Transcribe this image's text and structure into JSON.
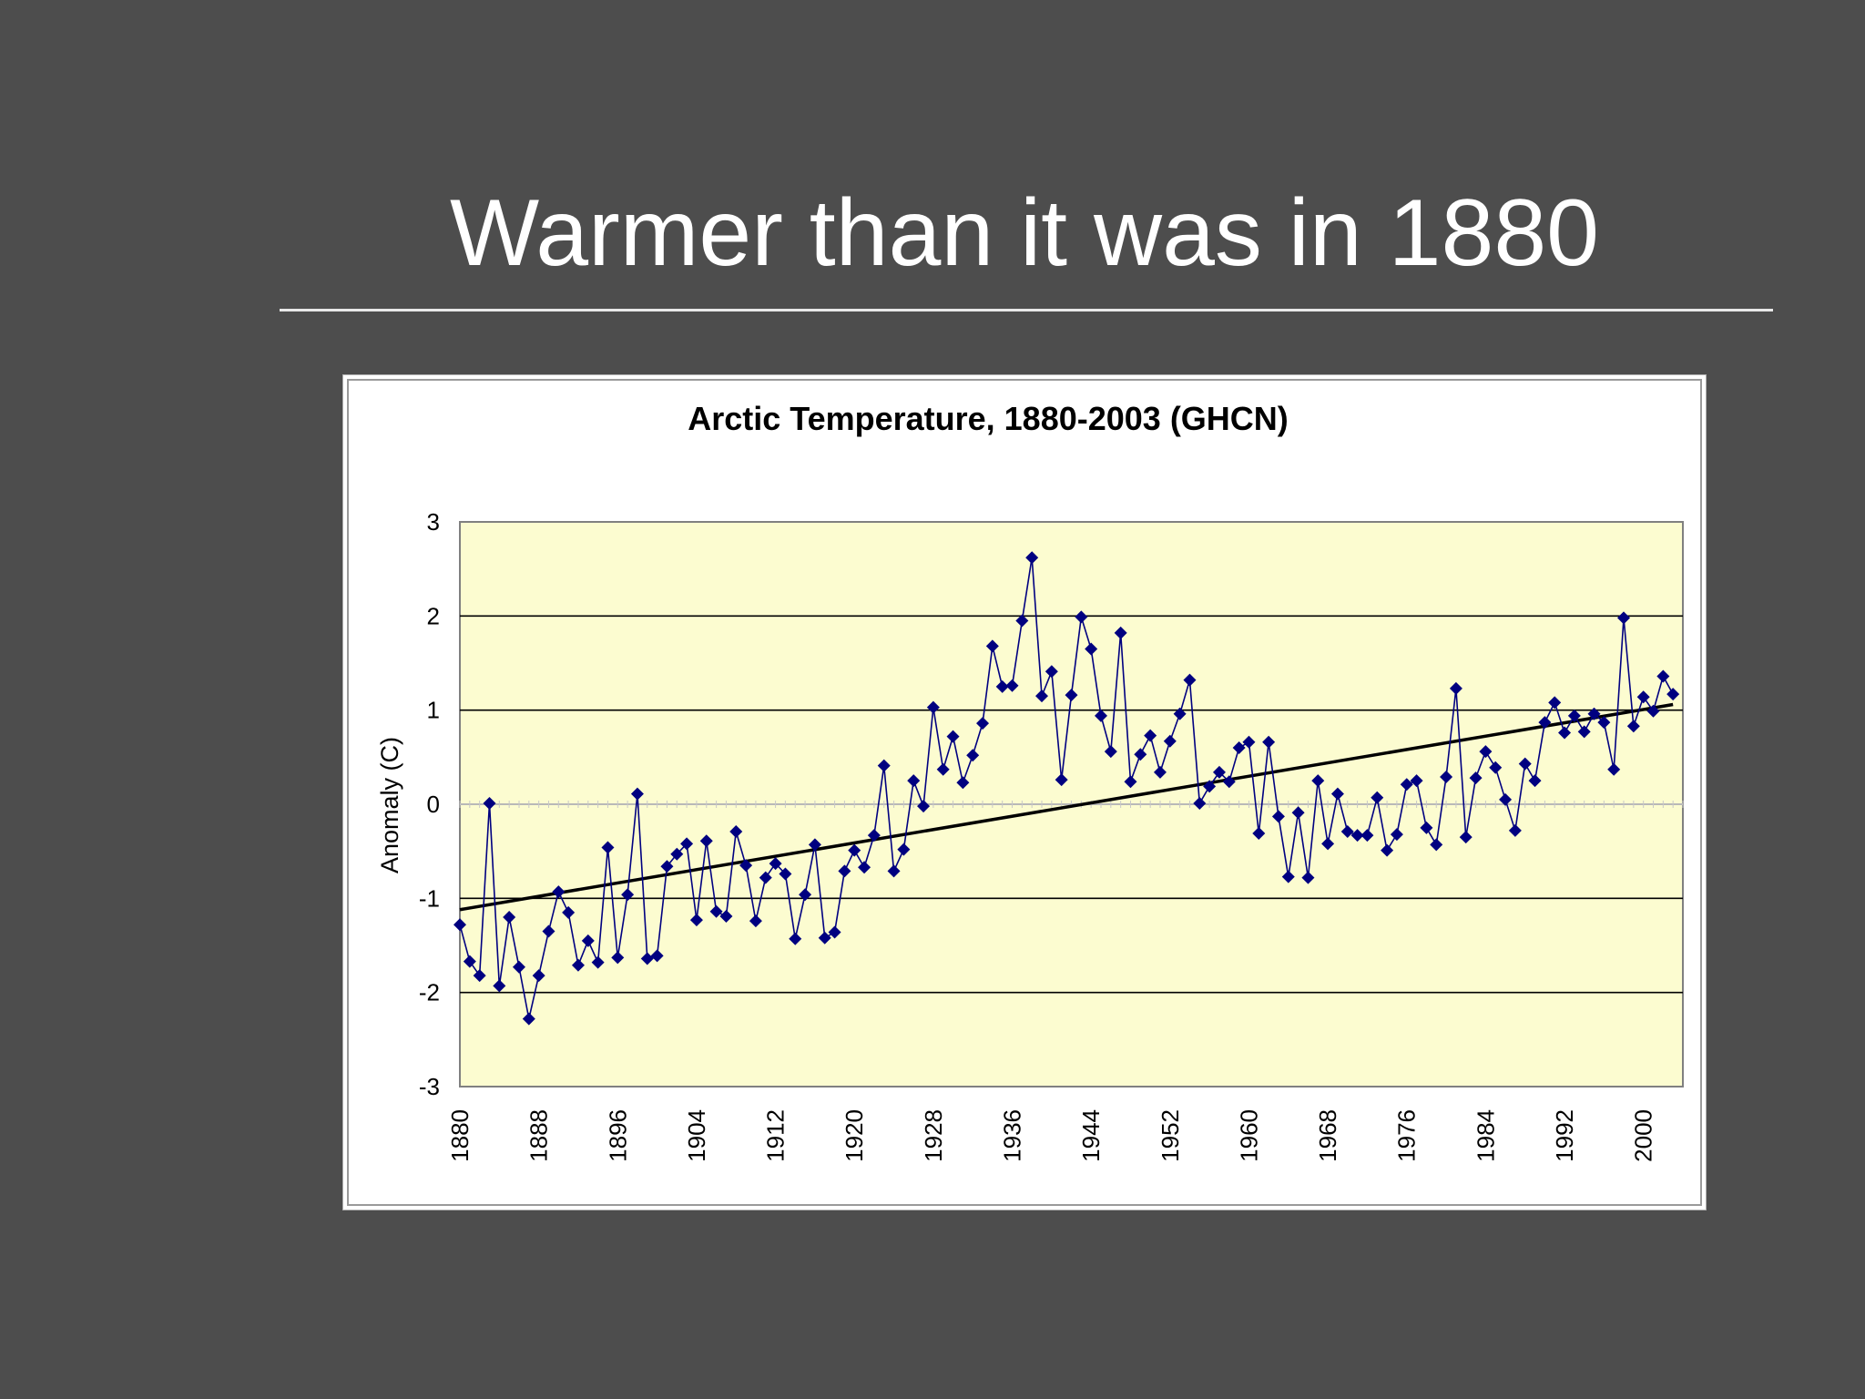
{
  "slide": {
    "title": "Warmer than it was in 1880"
  },
  "colors": {
    "background": "#4d4d4d",
    "plot_area": "#fcfcd0",
    "series": "#000080",
    "trend": "#000000"
  },
  "chart_data": {
    "type": "line",
    "title": "Arctic Temperature, 1880-2003 (GHCN)",
    "xlabel": "",
    "ylabel": "Anomaly (C)",
    "xlim": [
      1880,
      2004
    ],
    "ylim": [
      -3,
      3
    ],
    "yticks": [
      3,
      2,
      1,
      0,
      -1,
      -2,
      -3
    ],
    "xticks": [
      1880,
      1888,
      1896,
      1904,
      1912,
      1920,
      1928,
      1936,
      1944,
      1952,
      1960,
      1968,
      1976,
      1984,
      1992,
      2000
    ],
    "grid": true,
    "legend": "none",
    "series": [
      {
        "marker": "diamond",
        "x": [
          1880,
          1881,
          1882,
          1883,
          1884,
          1885,
          1886,
          1887,
          1888,
          1889,
          1890,
          1891,
          1892,
          1893,
          1894,
          1895,
          1896,
          1897,
          1898,
          1899,
          1900,
          1901,
          1902,
          1903,
          1904,
          1905,
          1906,
          1907,
          1908,
          1909,
          1910,
          1911,
          1912,
          1913,
          1914,
          1915,
          1916,
          1917,
          1918,
          1919,
          1920,
          1921,
          1922,
          1923,
          1924,
          1925,
          1926,
          1927,
          1928,
          1929,
          1930,
          1931,
          1932,
          1933,
          1934,
          1935,
          1936,
          1937,
          1938,
          1939,
          1940,
          1941,
          1942,
          1943,
          1944,
          1945,
          1946,
          1947,
          1948,
          1949,
          1950,
          1951,
          1952,
          1953,
          1954,
          1955,
          1956,
          1957,
          1958,
          1959,
          1960,
          1961,
          1962,
          1963,
          1964,
          1965,
          1966,
          1967,
          1968,
          1969,
          1970,
          1971,
          1972,
          1973,
          1974,
          1975,
          1976,
          1977,
          1978,
          1979,
          1980,
          1981,
          1982,
          1983,
          1984,
          1985,
          1986,
          1987,
          1988,
          1989,
          1990,
          1991,
          1992,
          1993,
          1994,
          1995,
          1996,
          1997,
          1998,
          1999,
          2000,
          2001,
          2002,
          2003
        ],
        "y": [
          -1.28,
          -1.67,
          -1.82,
          0.01,
          -1.93,
          -1.2,
          -1.73,
          -2.28,
          -1.82,
          -1.35,
          -0.93,
          -1.15,
          -1.71,
          -1.45,
          -1.68,
          -0.46,
          -1.63,
          -0.96,
          0.11,
          -1.64,
          -1.61,
          -0.66,
          -0.53,
          -0.42,
          -1.23,
          -0.39,
          -1.14,
          -1.19,
          -0.29,
          -0.65,
          -1.24,
          -0.78,
          -0.63,
          -0.74,
          -1.43,
          -0.96,
          -0.43,
          -1.42,
          -1.36,
          -0.71,
          -0.49,
          -0.67,
          -0.33,
          0.41,
          -0.71,
          -0.48,
          0.25,
          -0.02,
          1.03,
          0.37,
          0.72,
          0.23,
          0.52,
          0.86,
          1.68,
          1.25,
          1.26,
          1.95,
          2.62,
          1.15,
          1.41,
          0.26,
          1.16,
          1.99,
          1.65,
          0.94,
          0.56,
          1.82,
          0.24,
          0.53,
          0.73,
          0.34,
          0.67,
          0.96,
          1.32,
          0.01,
          0.19,
          0.34,
          0.24,
          0.6,
          0.66,
          -0.31,
          0.66,
          -0.13,
          -0.77,
          -0.09,
          -0.78,
          0.25,
          -0.42,
          0.11,
          -0.29,
          -0.33,
          -0.33,
          0.07,
          -0.49,
          -0.32,
          0.21,
          0.25,
          -0.25,
          -0.43,
          0.29,
          1.23,
          -0.35,
          0.28,
          0.56,
          0.39,
          0.05,
          -0.28,
          0.43,
          0.25,
          0.87,
          1.08,
          0.76,
          0.94,
          0.77,
          0.96,
          0.87,
          0.37,
          1.98,
          0.83,
          1.14,
          0.99,
          1.36,
          1.17
        ]
      }
    ],
    "trend": {
      "x": [
        1880,
        2003
      ],
      "y": [
        -1.12,
        1.06
      ]
    }
  }
}
